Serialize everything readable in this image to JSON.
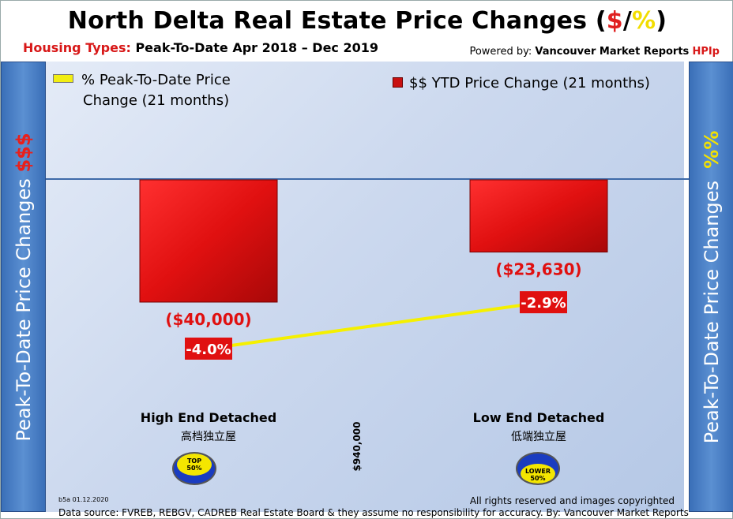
{
  "title": {
    "main": "North Delta Real Estate Price Changes (",
    "dollar": "$",
    "slash": "/",
    "pct": "%",
    "close": ")"
  },
  "subtitle": {
    "label": "Housing Types:",
    "period": "Peak-To-Date Apr 2018 – Dec 2019"
  },
  "powered_by": {
    "prefix": "Powered by:",
    "brand": "Vancouver Market Reports",
    "hpi": "HPIp"
  },
  "side_left": {
    "text": "Peak-To-Date Price Changes",
    "symbol": "$$$"
  },
  "side_right": {
    "text": "Peak-To-Date  Price  Changes",
    "symbol": "%%"
  },
  "price_reference": "$940,000",
  "badges": {
    "top": "TOP 50%",
    "top_line1": "TOP",
    "top_line2": "50%",
    "lower_line1": "LOWER",
    "lower_line2": "50%"
  },
  "footer": {
    "version": "b5a 01.12.2020",
    "rights": "All rights reserved and  images copyrighted",
    "source": "Data source: FVREB, REBGV, CADREB Real Estate Board & they assume no responsibility for accuracy. By: Vancouver Market Reports"
  },
  "colors": {
    "bar": "#e01010",
    "line": "#f5f000",
    "label_red": "#e01010"
  },
  "chart_data": {
    "type": "bar",
    "categories": [
      "High End Detached",
      "Low End Detached"
    ],
    "categories_zh": [
      "高档独立屋",
      "低端独立屋"
    ],
    "series": [
      {
        "name": "$$ YTD Price Change (21 months)",
        "type": "bar",
        "values": [
          -40000,
          -23630
        ],
        "labels": [
          "($40,000)",
          "($23,630)"
        ]
      },
      {
        "name": "% Peak-To-Date Price Change (21 months)",
        "type": "line",
        "values": [
          -4.0,
          -2.9
        ],
        "labels": [
          "-4.0%",
          "-2.9%"
        ]
      }
    ],
    "legend": {
      "pct_line1": "% Peak-To-Date Price",
      "pct_line2": "Change (21 months)",
      "usd": "$$ YTD Price Change (21 months)"
    },
    "ylim_usd": [
      -100000,
      0
    ],
    "ylim_pct": [
      -10,
      0
    ],
    "grid": false
  }
}
